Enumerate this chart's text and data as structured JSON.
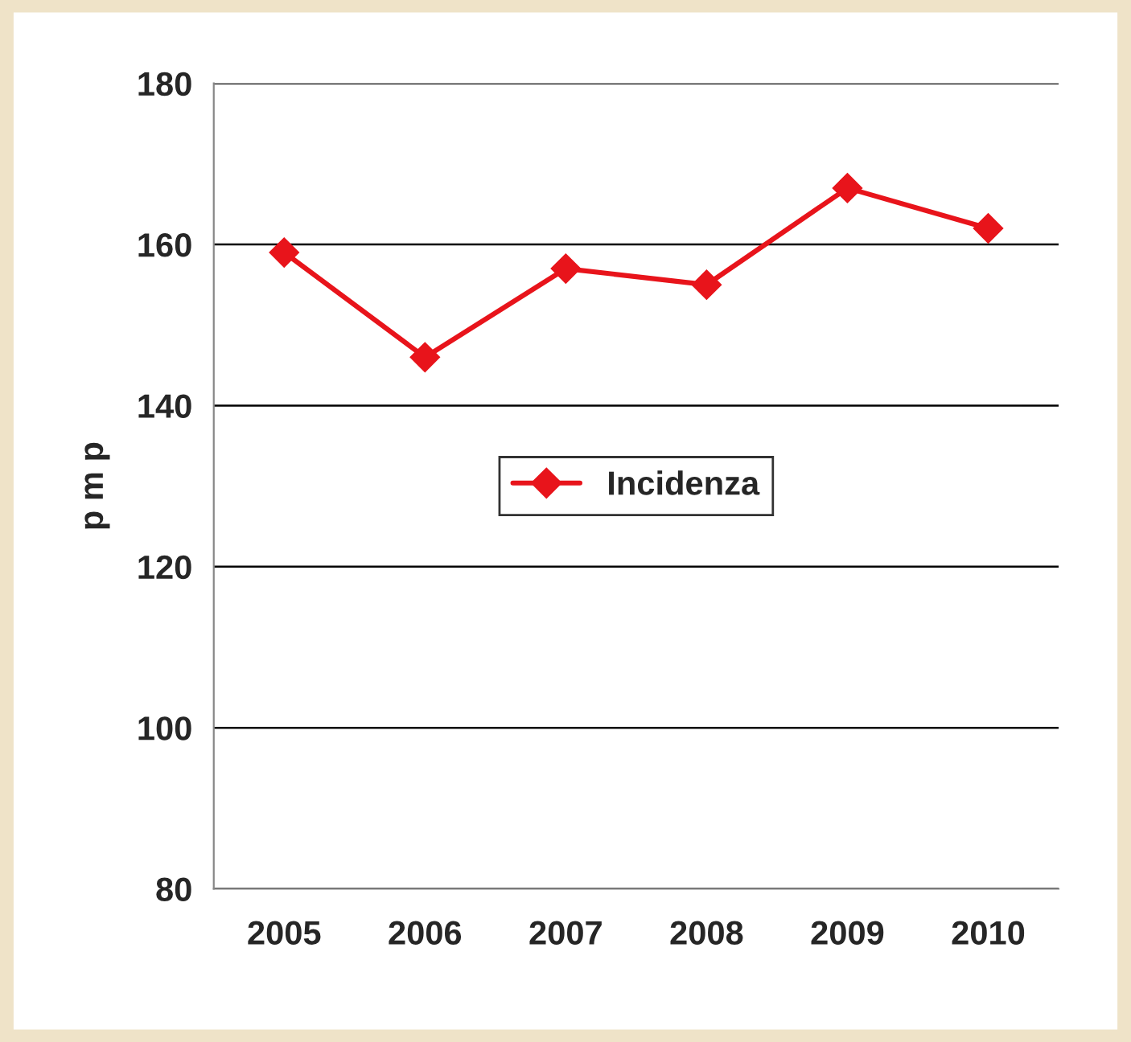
{
  "chart_data": {
    "type": "line",
    "ylabel": "p m p",
    "categories": [
      "2005",
      "2006",
      "2007",
      "2008",
      "2009",
      "2010"
    ],
    "series": [
      {
        "name": "Incidenza",
        "color": "#e8141b",
        "values": [
          159,
          146,
          157,
          155,
          167,
          162
        ]
      }
    ],
    "ylim": [
      80,
      180
    ],
    "yticks": [
      80,
      100,
      120,
      140,
      160,
      180
    ],
    "grid": "y",
    "legend": "center",
    "marker": "diamond",
    "line_style": "solid"
  }
}
